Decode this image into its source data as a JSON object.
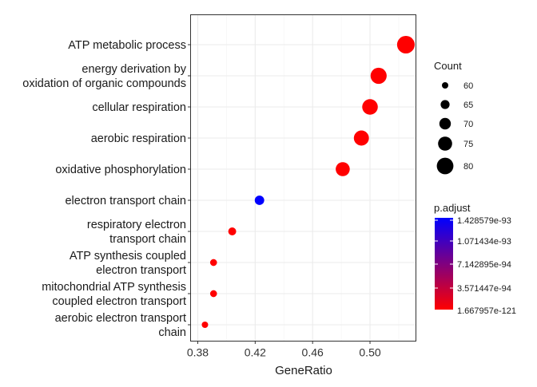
{
  "chart_data": {
    "type": "scatter",
    "title": "",
    "xlabel": "GeneRatio",
    "ylabel": "",
    "xlim": [
      0.375,
      0.532
    ],
    "xticks": [
      0.38,
      0.42,
      0.46,
      0.5
    ],
    "xtick_labels": [
      "0.38",
      "0.42",
      "0.46",
      "0.50"
    ],
    "grid": true,
    "categories": [
      "ATP metabolic process",
      "energy derivation by\noxidation of organic compounds",
      "cellular respiration",
      "aerobic respiration",
      "oxidative phosphorylation",
      "electron transport chain",
      "respiratory electron\ntransport chain",
      "ATP synthesis coupled\nelectron transport",
      "mitochondrial ATP synthesis\ncoupled electron transport",
      "aerobic electron transport\nchain"
    ],
    "points": [
      {
        "gene_ratio": 0.525,
        "count": 82,
        "p_adjust": 1.667957e-121,
        "color": "#ff0000"
      },
      {
        "gene_ratio": 0.506,
        "count": 79,
        "p_adjust": 2e-115,
        "color": "#ff0000"
      },
      {
        "gene_ratio": 0.5,
        "count": 78,
        "p_adjust": 5e-114,
        "color": "#ff0000"
      },
      {
        "gene_ratio": 0.494,
        "count": 77,
        "p_adjust": 1e-112,
        "color": "#ff0000"
      },
      {
        "gene_ratio": 0.481,
        "count": 75,
        "p_adjust": 3e-108,
        "color": "#ff0000"
      },
      {
        "gene_ratio": 0.423,
        "count": 66,
        "p_adjust": 1.428579e-93,
        "color": "#0000ff"
      },
      {
        "gene_ratio": 0.404,
        "count": 63,
        "p_adjust": 2e-101,
        "color": "#ff0000"
      },
      {
        "gene_ratio": 0.391,
        "count": 61,
        "p_adjust": 4e-103,
        "color": "#ff0000"
      },
      {
        "gene_ratio": 0.391,
        "count": 61,
        "p_adjust": 4e-103,
        "color": "#ff0000"
      },
      {
        "gene_ratio": 0.385,
        "count": 60,
        "p_adjust": 1e-100,
        "color": "#ff0000"
      }
    ],
    "size_legend": {
      "title": "Count",
      "labels": [
        "60",
        "65",
        "70",
        "75",
        "80"
      ],
      "values": [
        60,
        65,
        70,
        75,
        80
      ]
    },
    "color_legend": {
      "title": "p.adjust",
      "labels": [
        "1.428579e-93",
        "1.071434e-93",
        "7.142895e-94",
        "3.571447e-94",
        "1.667957e-121"
      ],
      "high_color": "#0000ff",
      "low_color": "#ff0000"
    }
  }
}
